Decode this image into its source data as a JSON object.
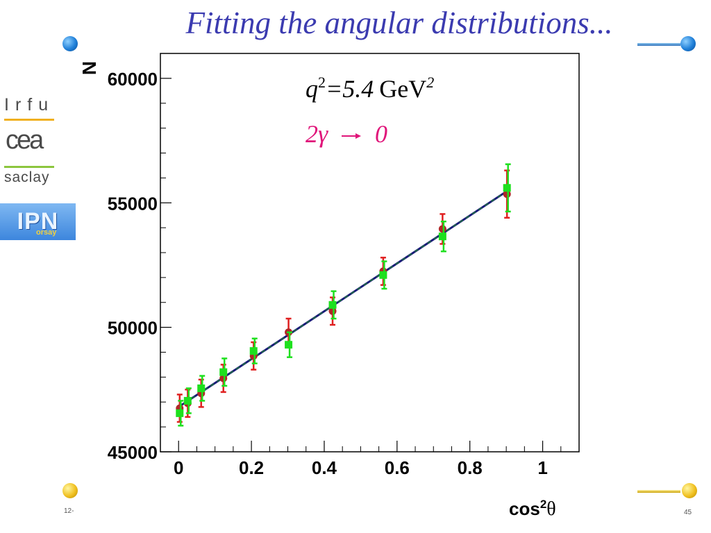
{
  "slide": {
    "title": "Fitting the angular distributions...",
    "date": "12-",
    "page_number": "45"
  },
  "logos": {
    "irfu": "Irfu",
    "cea": "cea",
    "saclay": "saclay",
    "ipn": "IPN",
    "ipn_sub": "orsay"
  },
  "colors": {
    "title": "#3b3bb0",
    "fit_line": "#1a1a7a",
    "fit_line_dash": "#1e7a3a",
    "series_red": "#e02020",
    "series_red_marker": "#b02828",
    "series_green": "#1ee01e",
    "annotation_magenta": "#e0157a"
  },
  "chart_data": {
    "type": "scatter",
    "title": "",
    "xlabel": "cos²θ",
    "xlabel_main": "cos",
    "xlabel_sup": "2",
    "xlabel_theta": "θ",
    "ylabel": "N",
    "xlim": [
      -0.05,
      1.1
    ],
    "ylim": [
      45000,
      61000
    ],
    "x_ticks": [
      0,
      0.2,
      0.4,
      0.6,
      0.8,
      1
    ],
    "x_tick_labels": [
      "0",
      "0.2",
      "0.4",
      "0.6",
      "0.8",
      "1"
    ],
    "y_ticks": [
      45000,
      50000,
      55000,
      60000
    ],
    "y_tick_labels": [
      "45000",
      "50000",
      "55000",
      "60000"
    ],
    "grid": false,
    "annotations": {
      "q2_label": "q",
      "q2_sup": "2",
      "q2_value": "=5.4",
      "q2_unit": "GeV",
      "q2_unit_sup": "2",
      "gamma_2": "2γ",
      "gamma_zero": "0"
    },
    "series": [
      {
        "marker": "circle",
        "color": "#b02828",
        "errorbar_color": "#e02020",
        "x": [
          0.003,
          0.025,
          0.062,
          0.123,
          0.206,
          0.302,
          0.423,
          0.562,
          0.725,
          0.902
        ],
        "y": [
          46750,
          46950,
          47350,
          47950,
          48850,
          49800,
          50650,
          52250,
          53950,
          55350
        ],
        "yerr": [
          550,
          550,
          550,
          550,
          550,
          550,
          550,
          550,
          600,
          950
        ]
      },
      {
        "marker": "square",
        "color": "#1ee01e",
        "errorbar_color": "#1ee01e",
        "x": [
          0.003,
          0.025,
          0.062,
          0.123,
          0.206,
          0.302,
          0.423,
          0.562,
          0.725,
          0.902
        ],
        "y": [
          46550,
          47050,
          47550,
          48200,
          49050,
          49300,
          50900,
          52100,
          53650,
          55600
        ],
        "yerr": [
          500,
          500,
          500,
          550,
          500,
          500,
          550,
          550,
          600,
          950
        ]
      }
    ],
    "fit": {
      "x": [
        0,
        0.9
      ],
      "y": [
        46800,
        55450
      ]
    }
  }
}
